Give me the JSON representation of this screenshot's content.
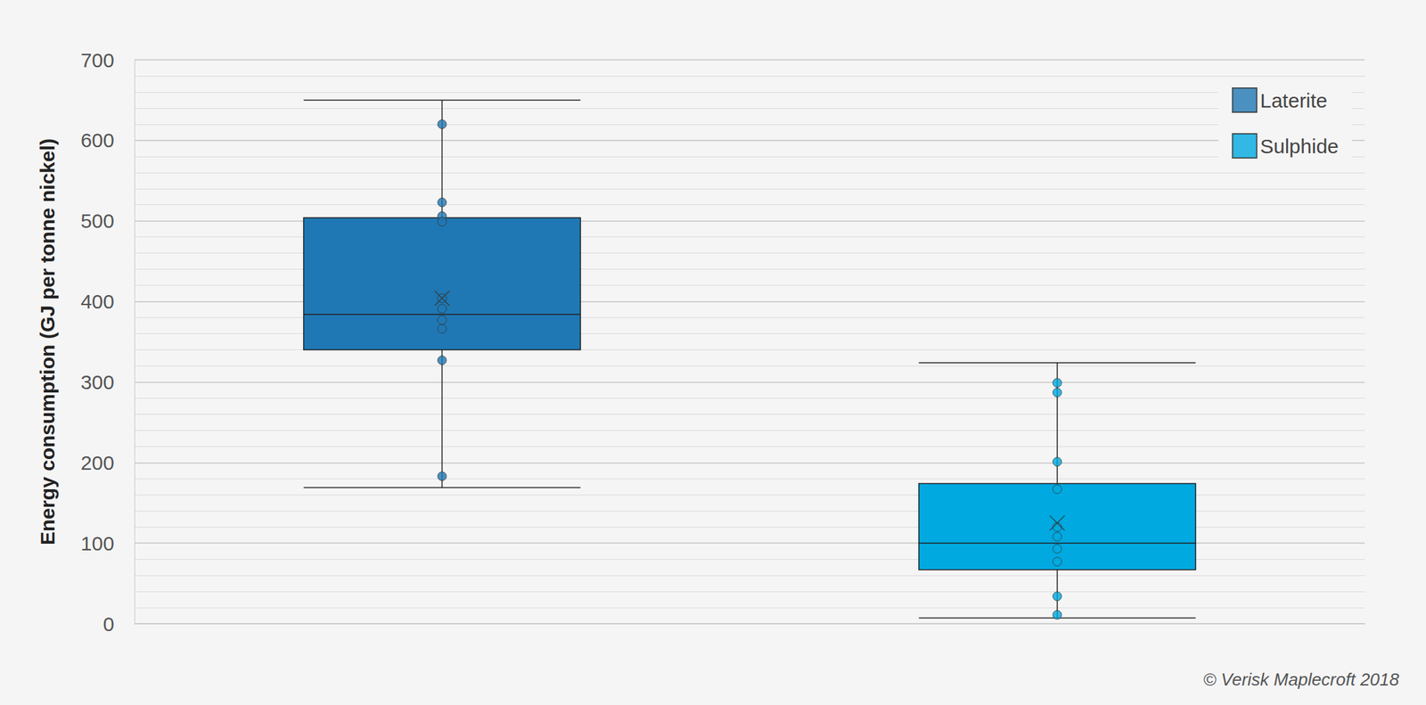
{
  "chart_data": {
    "type": "boxplot",
    "y_label": "Energy consumption (GJ per tonne nickel)",
    "annotation": "© Verisk Maplecroft 2018",
    "series": [
      {
        "name": "Laterite",
        "color": "#1f78b4",
        "values": [
          169,
          340,
          384,
          504,
          650
        ],
        "mean": 404,
        "points": [
          620,
          523,
          506,
          499,
          404,
          391,
          377,
          366,
          327,
          183
        ]
      },
      {
        "name": "Sulphide",
        "color": "#00a9e0",
        "values": [
          7,
          67,
          100,
          174,
          324
        ],
        "mean": 125,
        "points": [
          299,
          287,
          201,
          167,
          120,
          108,
          93,
          77,
          34,
          11
        ]
      }
    ],
    "ylim": [
      0,
      700
    ],
    "yticks": [
      0,
      100,
      200,
      300,
      400,
      500,
      600,
      700
    ],
    "grid": true,
    "legend": "upper right",
    "tick_labels": "y",
    "marker": "circle"
  }
}
